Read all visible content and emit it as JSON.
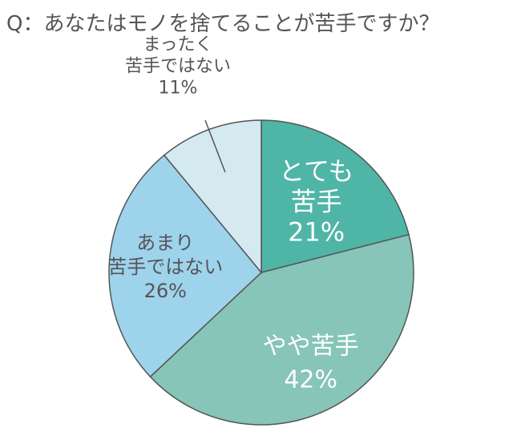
{
  "chart_data": {
    "type": "pie",
    "title": "Q：あなたはモノを捨てることが苦手ですか？",
    "start": "12 o'clock",
    "direction": "clockwise",
    "slices": [
      {
        "label_lines": [
          "とても",
          "苦手"
        ],
        "value_label": "21%",
        "value": 21,
        "color": "#4fb5a7",
        "text_color": "#ffffff"
      },
      {
        "label_lines": [
          "やや苦手"
        ],
        "value_label": "42%",
        "value": 42,
        "color": "#86c5b7",
        "text_color": "#ffffff"
      },
      {
        "label_lines": [
          "あまり",
          "苦手ではない"
        ],
        "value_label": "26%",
        "value": 26,
        "color": "#9ed3ec",
        "text_color": "#555555"
      },
      {
        "label_lines": [
          "まったく",
          "苦手ではない"
        ],
        "value_label": "11%",
        "value": 11,
        "color": "#d5e9f0",
        "text_color": "#555555"
      }
    ],
    "border_color": "#555555"
  }
}
